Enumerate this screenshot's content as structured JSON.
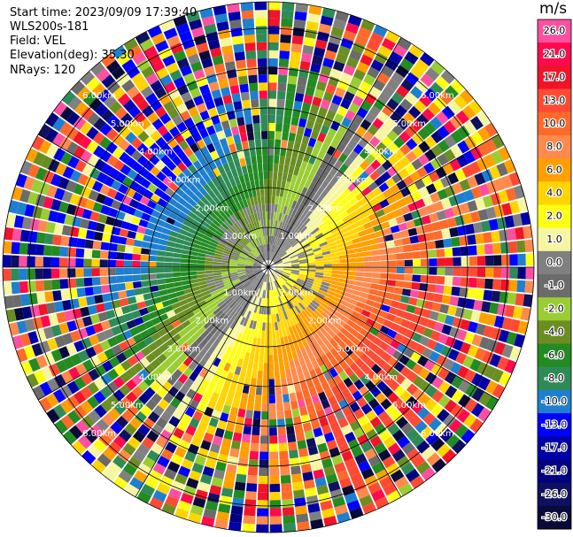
{
  "header": {
    "start_time": "Start time: 2023/09/09 17:39:40",
    "instrument": "WLS200s-181",
    "field": "Field: VEL",
    "elevation": "Elevation(deg): 35.30",
    "nrays": "NRays: 120"
  },
  "chart_data": {
    "type": "heatmap",
    "projection": "polar-ppi",
    "field": "VEL",
    "units": "m/s",
    "n_rays": 120,
    "elevation_deg": 35.3,
    "grid": true,
    "range_rings_km": [
      "1.00km",
      "2.00km",
      "3.00km",
      "4.00km",
      "5.00km",
      "6.00km"
    ],
    "colorbar": {
      "label": "m/s",
      "ticks": [
        "26.0",
        "21.0",
        "17.0",
        "13.0",
        "10.0",
        "8.0",
        "6.0",
        "4.0",
        "2.0",
        "1.0",
        "0.0",
        "-1.0",
        "-2.0",
        "-4.0",
        "-6.0",
        "-8.0",
        "-10.0",
        "-13.0",
        "-17.0",
        "-21.0",
        "-26.0",
        "-30.0"
      ],
      "colors": [
        "#ff4fa0",
        "#ff0a4c",
        "#f0142a",
        "#ff4a33",
        "#ff6a2a",
        "#ff8a4c",
        "#ffa000",
        "#ffd400",
        "#ffff14",
        "#f6f6a0",
        "#808080",
        "#6b6b6b",
        "#9acd32",
        "#6b8e23",
        "#228b22",
        "#2e8b57",
        "#1e7fd0",
        "#0000ff",
        "#0000a8",
        "#000080",
        "#101060",
        "#0a0a3a"
      ]
    }
  }
}
